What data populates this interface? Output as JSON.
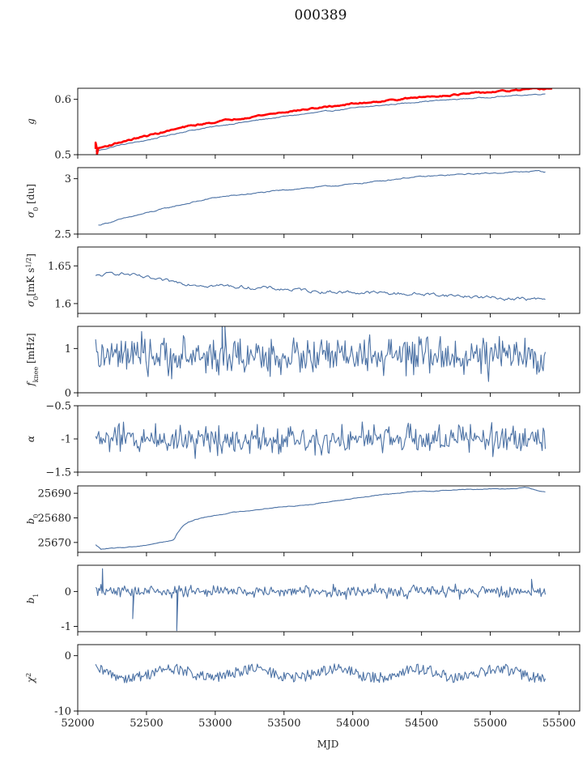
{
  "figure": {
    "title": "000389"
  },
  "colors": {
    "series": "#4c72a5",
    "highlight": "#ff0000",
    "frame": "#000000"
  },
  "xaxis": {
    "label": "MJD",
    "range": [
      52000,
      55650
    ],
    "ticks": [
      52000,
      52500,
      53000,
      53500,
      54000,
      54500,
      55000,
      55500
    ]
  },
  "chart_data": [
    {
      "type": "line",
      "ylabel": "g",
      "ylim": [
        0.5,
        0.62
      ],
      "yticks": [
        0.5,
        0.6
      ],
      "series": [
        {
          "style": "blue",
          "shape": "curve",
          "x": [
            52130,
            52300,
            52500,
            52800,
            53100,
            53500,
            54000,
            54500,
            55000,
            55400
          ],
          "y": [
            0.506,
            0.517,
            0.526,
            0.543,
            0.555,
            0.569,
            0.584,
            0.596,
            0.604,
            0.61
          ],
          "noise": 0.0007,
          "glitches": []
        },
        {
          "style": "red",
          "shape": "curve",
          "x": [
            52130,
            52300,
            52500,
            52800,
            53100,
            53500,
            54000,
            54500,
            55000,
            55450
          ],
          "y": [
            0.51,
            0.522,
            0.534,
            0.551,
            0.563,
            0.577,
            0.592,
            0.604,
            0.613,
            0.62
          ],
          "noise": 0.001,
          "glitches": [
            {
              "x": 52130,
              "y": 0.522
            },
            {
              "x": 52140,
              "y": 0.501
            }
          ]
        }
      ]
    },
    {
      "type": "line",
      "ylabel": "σ0 [du]",
      "ylim": [
        2.5,
        3.1
      ],
      "yticks": [
        2.5,
        3.0
      ],
      "series": [
        {
          "style": "blue",
          "shape": "curve",
          "x": [
            52150,
            52400,
            52700,
            53000,
            53300,
            53600,
            54000,
            54400,
            54800,
            55200,
            55350,
            55400
          ],
          "y": [
            2.58,
            2.66,
            2.75,
            2.83,
            2.87,
            2.91,
            2.95,
            3.01,
            3.04,
            3.06,
            3.07,
            3.06
          ],
          "noise": 0.004,
          "glitches": []
        }
      ]
    },
    {
      "type": "line",
      "ylabel": "σ0[mK s1/2]",
      "ylim": [
        1.587,
        1.675
      ],
      "yticks": [
        1.6,
        1.65
      ],
      "series": [
        {
          "style": "blue",
          "shape": "curve",
          "x": [
            52130,
            52300,
            52600,
            53000,
            53400,
            53800,
            54200,
            54600,
            55000,
            55400
          ],
          "y": [
            1.636,
            1.641,
            1.63,
            1.624,
            1.62,
            1.616,
            1.614,
            1.612,
            1.608,
            1.605
          ],
          "noise": 0.0018,
          "glitches": []
        }
      ]
    },
    {
      "type": "line",
      "ylabel": "fknee [mHz]",
      "ylim": [
        0,
        1.5
      ],
      "yticks": [
        0,
        1
      ],
      "series": [
        {
          "style": "blue",
          "shape": "noise",
          "x": [
            52130,
            55400
          ],
          "y": [
            0.82,
            0.82
          ],
          "noise": 0.16,
          "glitches": [
            {
              "x": 53050,
              "y": 1.55
            },
            {
              "x": 53060,
              "y": 0.62
            },
            {
              "x": 53070,
              "y": 1.5
            }
          ]
        }
      ]
    },
    {
      "type": "line",
      "ylabel": "α",
      "ylim": [
        -1.5,
        -0.5
      ],
      "yticks": [
        -1.5,
        -1.0,
        -0.5
      ],
      "series": [
        {
          "style": "blue",
          "shape": "noise",
          "x": [
            52130,
            55400
          ],
          "y": [
            -1.0,
            -1.0
          ],
          "noise": 0.085,
          "glitches": []
        }
      ]
    },
    {
      "type": "line",
      "ylabel": "b0",
      "ylim": [
        25666,
        25693
      ],
      "yticks": [
        25670,
        25680,
        25690
      ],
      "series": [
        {
          "style": "blue",
          "shape": "curve",
          "x": [
            52130,
            52170,
            52250,
            52450,
            52700,
            52720,
            52760,
            52800,
            52900,
            53100,
            53400,
            53700,
            54000,
            54400,
            54800,
            55200,
            55250,
            55400
          ],
          "y": [
            25669,
            25667.3,
            25667.6,
            25668.5,
            25671.0,
            25673.5,
            25676.5,
            25678.2,
            25680,
            25682,
            25684,
            25685.5,
            25688,
            25690.5,
            25691.5,
            25692,
            25692.5,
            25690.5
          ],
          "noise": 0.12,
          "glitches": []
        }
      ]
    },
    {
      "type": "line",
      "ylabel": "b1",
      "ylim": [
        -1.15,
        0.75
      ],
      "yticks": [
        -1,
        0
      ],
      "series": [
        {
          "style": "blue",
          "shape": "noise",
          "x": [
            52130,
            55400
          ],
          "y": [
            0.0,
            0.0
          ],
          "noise": 0.065,
          "glitches": [
            {
              "x": 52180,
              "y": 0.65
            },
            {
              "x": 52400,
              "y": -0.78
            },
            {
              "x": 52720,
              "y": -1.12
            },
            {
              "x": 55300,
              "y": 0.35
            }
          ]
        }
      ]
    },
    {
      "type": "line",
      "ylabel": "χ2",
      "ylim": [
        -10,
        2
      ],
      "yticks": [
        -10,
        0
      ],
      "series": [
        {
          "style": "blue",
          "shape": "wavy",
          "x": [
            52130,
            55400
          ],
          "y": [
            -3.2,
            -3.2
          ],
          "noise": 0.9,
          "glitches": []
        }
      ]
    }
  ]
}
